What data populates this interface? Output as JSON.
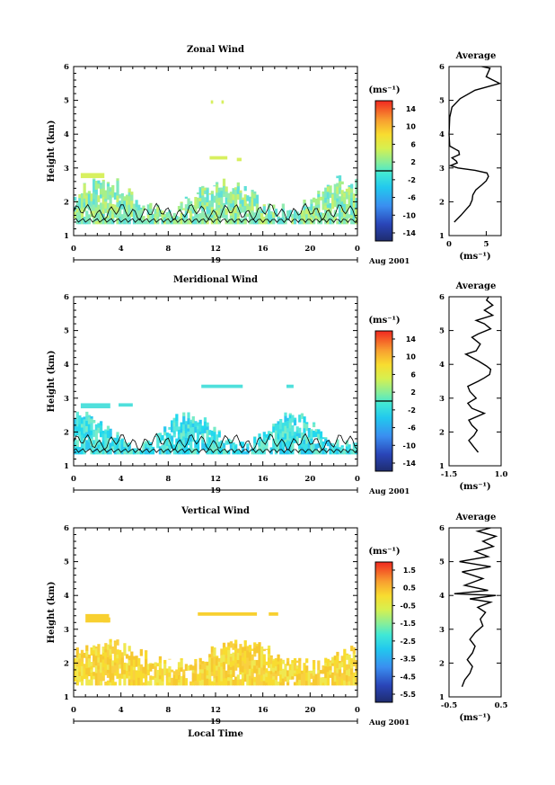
{
  "chart_data": [
    {
      "type": "heatmap",
      "title": "Zonal Wind",
      "ylabel": "Height (km)",
      "ylim": [
        1,
        6
      ],
      "yticks": [
        "1",
        "2",
        "3",
        "4",
        "5",
        "6"
      ],
      "xlim": [
        0,
        24
      ],
      "xticks": [
        "0",
        "4",
        "8",
        "12",
        "16",
        "20",
        "0"
      ],
      "date_label": "19",
      "month_label": "Aug 2001",
      "colorbar": {
        "unit": "(ms⁻¹)",
        "range": [
          -16,
          16
        ],
        "ticks": [
          "14",
          "10",
          "6",
          "2",
          "-2",
          "-6",
          "-10",
          "-14"
        ],
        "zero_line": 0
      },
      "profile": {
        "title": "Average",
        "xlabel": "(ms⁻¹)",
        "xlim": [
          0,
          7
        ],
        "xticks": [
          "0",
          "5"
        ],
        "points": [
          [
            0.7,
            1.4
          ],
          [
            1.6,
            1.6
          ],
          [
            2.2,
            1.75
          ],
          [
            2.8,
            1.9
          ],
          [
            3.1,
            2.05
          ],
          [
            3.2,
            2.2
          ],
          [
            3.6,
            2.35
          ],
          [
            4.4,
            2.5
          ],
          [
            5.0,
            2.62
          ],
          [
            5.3,
            2.75
          ],
          [
            5.1,
            2.85
          ],
          [
            3.5,
            2.93
          ],
          [
            1.2,
            3.0
          ],
          [
            0.2,
            3.07
          ],
          [
            1.1,
            3.15
          ],
          [
            1.0,
            3.2
          ],
          [
            0.4,
            3.3
          ],
          [
            1.4,
            3.4
          ],
          [
            1.3,
            3.5
          ],
          [
            0.1,
            3.65
          ],
          [
            0,
            4.0
          ],
          [
            0.1,
            4.5
          ],
          [
            0.4,
            4.8
          ],
          [
            1.5,
            5.05
          ],
          [
            3.5,
            5.3
          ],
          [
            6.8,
            5.5
          ],
          [
            5.0,
            5.7
          ],
          [
            5.5,
            5.95
          ],
          [
            4.4,
            6.0
          ]
        ]
      }
    },
    {
      "type": "heatmap",
      "title": "Meridional Wind",
      "ylabel": "Height (km)",
      "ylim": [
        1,
        6
      ],
      "yticks": [
        "1",
        "2",
        "3",
        "4",
        "5",
        "6"
      ],
      "xlim": [
        0,
        24
      ],
      "xticks": [
        "0",
        "4",
        "8",
        "12",
        "16",
        "20",
        "0"
      ],
      "date_label": "19",
      "month_label": "Aug 2001",
      "colorbar": {
        "unit": "(ms⁻¹)",
        "range": [
          -16,
          16
        ],
        "ticks": [
          "14",
          "10",
          "6",
          "2",
          "-2",
          "-6",
          "-10",
          "-14"
        ],
        "zero_line": 0
      },
      "profile": {
        "title": "Average",
        "xlabel": "(ms⁻¹)",
        "xlim": [
          -1.5,
          1.0
        ],
        "xticks": [
          "-1.5",
          "1.0"
        ],
        "points": [
          [
            -0.1,
            1.4
          ],
          [
            -0.3,
            1.55
          ],
          [
            -0.55,
            1.75
          ],
          [
            -0.3,
            1.9
          ],
          [
            -0.15,
            2.05
          ],
          [
            -0.4,
            2.2
          ],
          [
            -0.55,
            2.35
          ],
          [
            0.2,
            2.55
          ],
          [
            -0.4,
            2.7
          ],
          [
            -0.6,
            2.85
          ],
          [
            -0.2,
            3.0
          ],
          [
            -0.5,
            3.2
          ],
          [
            -0.6,
            3.35
          ],
          [
            -0.1,
            3.5
          ],
          [
            0.2,
            3.6
          ],
          [
            0.45,
            3.7
          ],
          [
            0.5,
            3.85
          ],
          [
            0.3,
            3.95
          ],
          [
            -0.1,
            4.1
          ],
          [
            -0.7,
            4.3
          ],
          [
            -0.2,
            4.4
          ],
          [
            0.0,
            4.6
          ],
          [
            -0.4,
            4.8
          ],
          [
            -0.1,
            4.9
          ],
          [
            0.5,
            5.05
          ],
          [
            0.2,
            5.2
          ],
          [
            -0.2,
            5.3
          ],
          [
            0.6,
            5.45
          ],
          [
            0.2,
            5.6
          ],
          [
            0.6,
            5.75
          ],
          [
            0.3,
            5.9
          ],
          [
            0.4,
            6.0
          ]
        ]
      }
    },
    {
      "type": "heatmap",
      "title": "Vertical Wind",
      "ylabel": "Height (km)",
      "xlabel": "Local Time",
      "ylim": [
        1,
        6
      ],
      "yticks": [
        "1",
        "2",
        "3",
        "4",
        "5",
        "6"
      ],
      "xlim": [
        0,
        24
      ],
      "xticks": [
        "0",
        "4",
        "8",
        "12",
        "16",
        "20",
        "0"
      ],
      "date_label": "19",
      "month_label": "Aug 2001",
      "colorbar": {
        "unit": "(ms⁻¹)",
        "range": [
          -6,
          2
        ],
        "ticks": [
          "1.5",
          "0.5",
          "-0.5",
          "-1.5",
          "-2.5",
          "-3.5",
          "-4.5",
          "-5.5"
        ]
      },
      "profile": {
        "title": "Average",
        "xlabel": "(ms⁻¹)",
        "xlim": [
          -0.5,
          0.5
        ],
        "xticks": [
          "-0.5",
          "0.5"
        ],
        "points": [
          [
            -0.25,
            1.3
          ],
          [
            -0.2,
            1.5
          ],
          [
            -0.1,
            1.7
          ],
          [
            -0.05,
            1.9
          ],
          [
            -0.15,
            2.1
          ],
          [
            -0.05,
            2.3
          ],
          [
            0.0,
            2.5
          ],
          [
            -0.1,
            2.7
          ],
          [
            0.0,
            2.9
          ],
          [
            0.15,
            3.1
          ],
          [
            0.1,
            3.3
          ],
          [
            0.2,
            3.5
          ],
          [
            0.05,
            3.65
          ],
          [
            0.3,
            3.8
          ],
          [
            -0.1,
            3.9
          ],
          [
            0.4,
            4.0
          ],
          [
            -0.4,
            4.05
          ],
          [
            0.25,
            4.15
          ],
          [
            -0.2,
            4.3
          ],
          [
            0.15,
            4.5
          ],
          [
            -0.25,
            4.7
          ],
          [
            0.3,
            4.85
          ],
          [
            -0.3,
            5.0
          ],
          [
            0.25,
            5.15
          ],
          [
            0.0,
            5.3
          ],
          [
            0.35,
            5.45
          ],
          [
            0.15,
            5.6
          ],
          [
            0.4,
            5.75
          ],
          [
            0.05,
            5.9
          ],
          [
            0.3,
            6.0
          ]
        ]
      }
    }
  ]
}
